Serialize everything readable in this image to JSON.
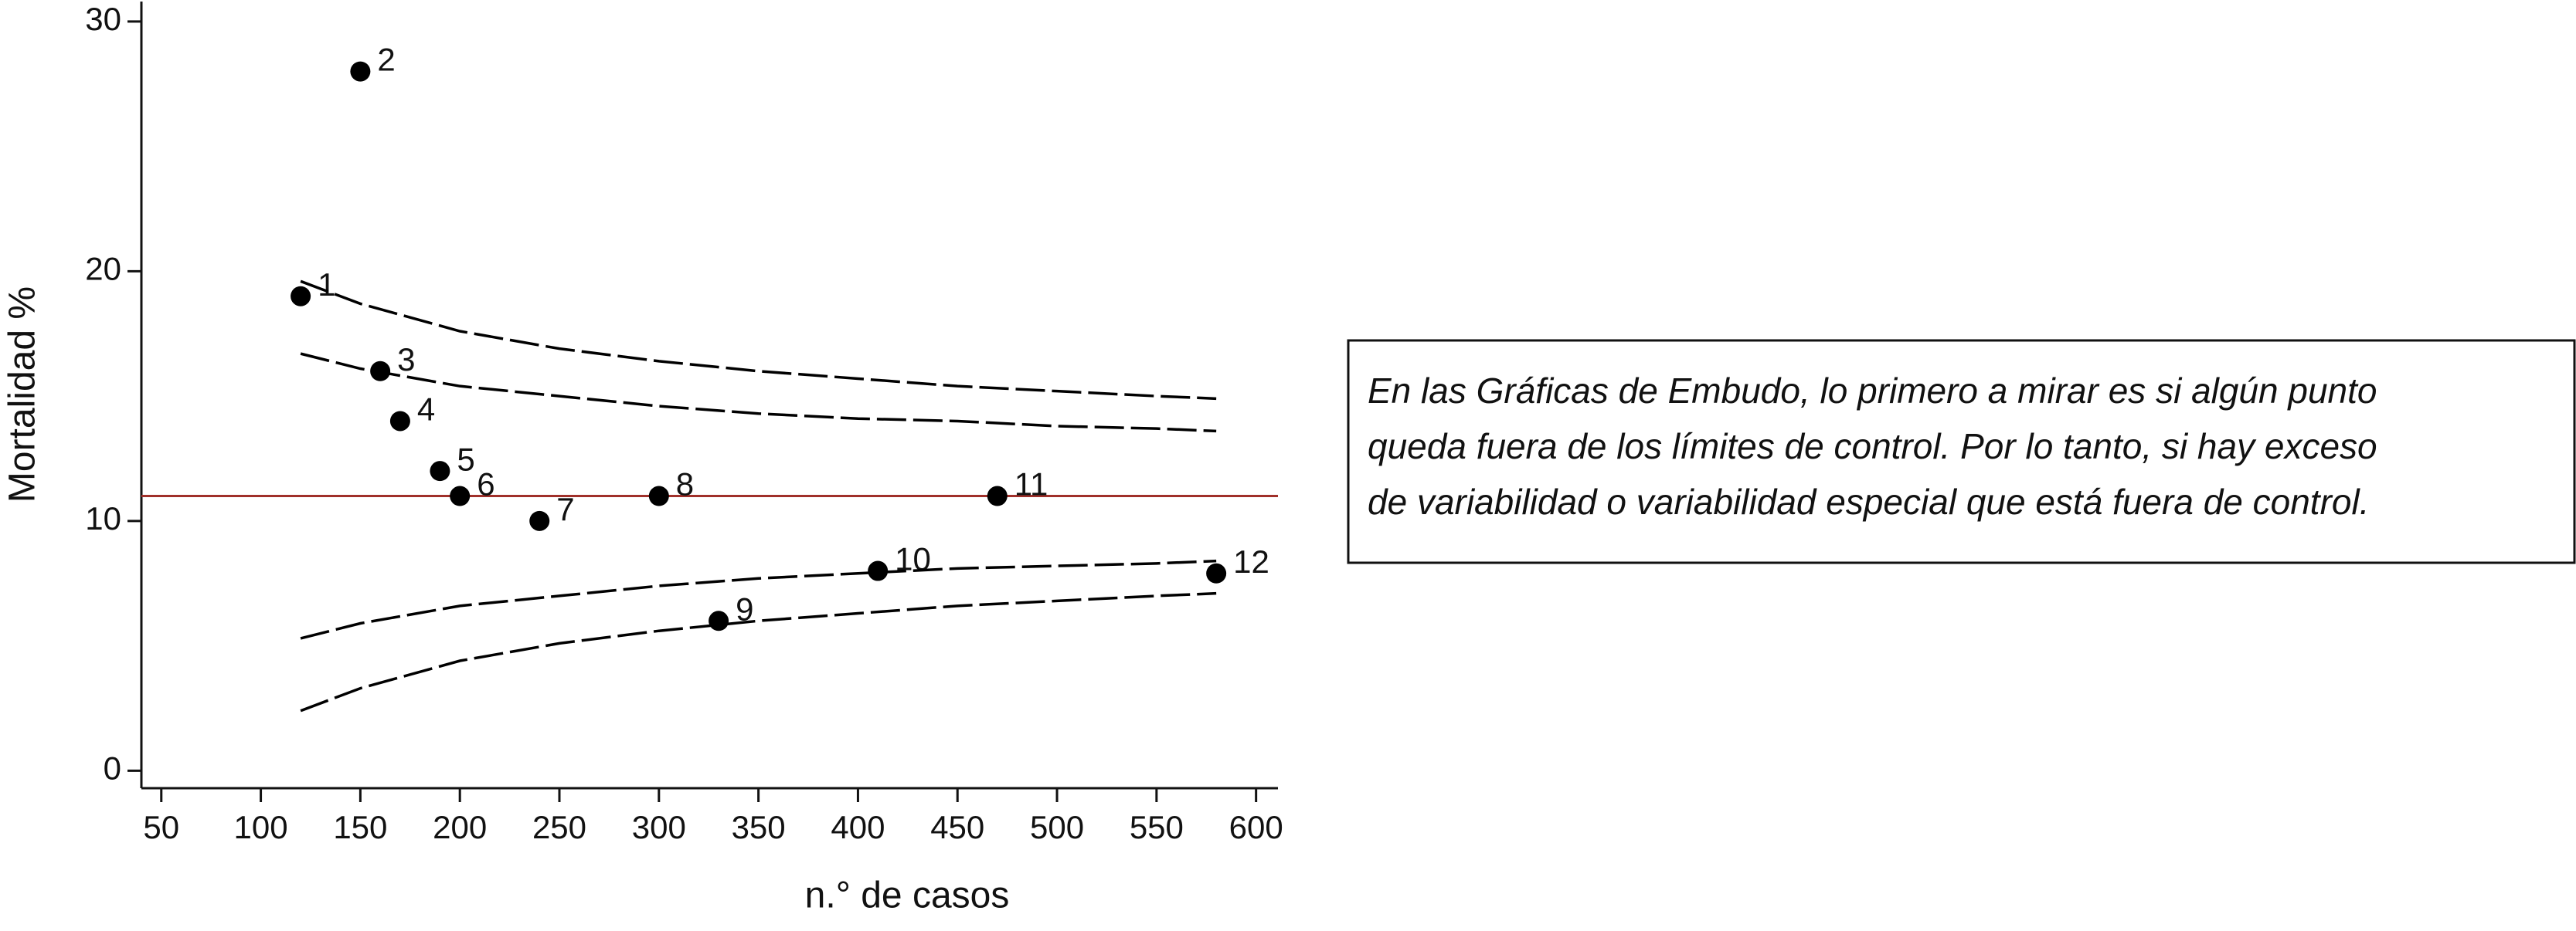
{
  "chart_data": {
    "type": "scatter",
    "xlabel": "n.° de casos",
    "ylabel": "Mortalidad %",
    "xlim": [
      40,
      611
    ],
    "ylim": [
      -0.7,
      30.8
    ],
    "xticks": [
      50,
      100,
      150,
      200,
      250,
      300,
      350,
      400,
      450,
      500,
      550,
      600
    ],
    "yticks": [
      0,
      10,
      20,
      30
    ],
    "series": [
      {
        "kind": "points",
        "color": "#000000",
        "x": [
          120,
          150,
          160,
          170,
          190,
          200,
          240,
          300,
          330,
          410,
          470,
          580
        ],
        "values": [
          19,
          28,
          16,
          14,
          12,
          11,
          10,
          11,
          6,
          8,
          11,
          7.9
        ],
        "labels": [
          "1",
          "2",
          "3",
          "4",
          "5",
          "6",
          "7",
          "8",
          "9",
          "10",
          "11",
          "12"
        ]
      },
      {
        "kind": "limit",
        "color": "#000000",
        "x": [
          120,
          150,
          200,
          250,
          300,
          350,
          400,
          450,
          500,
          550,
          580
        ],
        "values": [
          19.6,
          18.7,
          17.6,
          16.9,
          16.4,
          16.0,
          15.7,
          15.4,
          15.2,
          15.0,
          14.9
        ]
      },
      {
        "kind": "limit",
        "color": "#000000",
        "x": [
          120,
          150,
          200,
          250,
          300,
          350,
          400,
          450,
          500,
          550,
          580
        ],
        "values": [
          16.7,
          16.1,
          15.4,
          15.0,
          14.6,
          14.3,
          14.1,
          14.0,
          13.8,
          13.7,
          13.6
        ]
      },
      {
        "kind": "limit",
        "color": "#000000",
        "x": [
          120,
          150,
          200,
          250,
          300,
          350,
          400,
          450,
          500,
          550,
          580
        ],
        "values": [
          5.3,
          5.9,
          6.6,
          7.0,
          7.4,
          7.7,
          7.9,
          8.1,
          8.2,
          8.3,
          8.4
        ]
      },
      {
        "kind": "limit",
        "color": "#000000",
        "x": [
          120,
          150,
          200,
          250,
          300,
          350,
          400,
          450,
          500,
          550,
          580
        ],
        "values": [
          2.4,
          3.3,
          4.4,
          5.1,
          5.6,
          6.0,
          6.3,
          6.6,
          6.8,
          7.0,
          7.1
        ]
      }
    ],
    "reference_line": {
      "value": 11,
      "color": "#a0302a"
    },
    "annotation": [
      "En las Gráficas de Embudo, lo primero a mirar es si algún punto",
      "queda fuera de los límites de control. Por lo tanto, si hay exceso",
      "de variabilidad o variabilidad especial que está fuera de control."
    ]
  }
}
